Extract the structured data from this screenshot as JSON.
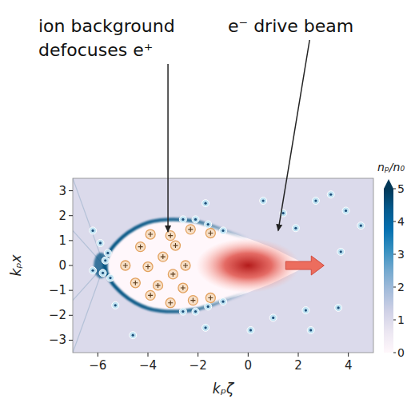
{
  "chart_data": {
    "type": "density_map",
    "annotations": [
      {
        "text": [
          "ion background",
          "defocuses e⁺"
        ],
        "xy": [
          -3.2,
          1.35
        ]
      },
      {
        "text": [
          "e⁻ drive beam"
        ],
        "xy": [
          1.2,
          1.4
        ]
      }
    ],
    "x_label": "kₚζ",
    "y_label": "kₚx",
    "xlim": [
      -7,
      5
    ],
    "ylim": [
      -3.5,
      3.5
    ],
    "xticks": [
      {
        "value": -6,
        "label": "−6"
      },
      {
        "value": -4,
        "label": "−4"
      },
      {
        "value": -2,
        "label": "−2"
      },
      0,
      2,
      4
    ],
    "yticks": [
      {
        "value": -3,
        "label": "−3"
      },
      {
        "value": -2,
        "label": "−2"
      },
      {
        "value": -1,
        "label": "−1"
      },
      0,
      1,
      2,
      3
    ],
    "colorbar": {
      "label": "nₚ/n₀",
      "range": [
        0,
        5
      ],
      "ticks": [
        0,
        1,
        2,
        3,
        4,
        5
      ]
    },
    "density": {
      "background": 1,
      "bubble": 0,
      "sheath": 4.5
    },
    "bubble_boundary": {
      "x": [
        -5.75,
        -5.5,
        -5.0,
        -4.5,
        -4.0,
        -3.5,
        -3.0,
        -2.5,
        -2.0,
        -1.5,
        -1.0,
        -0.5,
        0,
        0.5,
        1.0,
        1.5,
        2.0,
        2.3
      ],
      "y": [
        0,
        0.6,
        1.15,
        1.5,
        1.72,
        1.82,
        1.85,
        1.82,
        1.75,
        1.6,
        1.42,
        1.25,
        1.08,
        0.9,
        0.7,
        0.45,
        0.2,
        0
      ]
    },
    "beam": {
      "center": [
        0,
        0
      ],
      "sigma": [
        0.8,
        0.42
      ]
    },
    "ions": {
      "x": [
        -1.5,
        -2.3,
        -3.1,
        -3.9,
        -2.9,
        -4.3,
        -3.4,
        -4.9,
        -2.5,
        -4.0,
        -3.0,
        -4.5,
        -2.6,
        -3.6,
        -2.2,
        -3.1,
        -3.9,
        -1.5
      ],
      "y": [
        1.3,
        1.45,
        1.2,
        1.25,
        0.8,
        0.75,
        0.35,
        0.0,
        0.0,
        -0.05,
        -0.35,
        -0.7,
        -0.9,
        -0.8,
        -1.4,
        -1.5,
        -1.2,
        -1.3
      ]
    },
    "electrons": {
      "x": [
        -2.1,
        -1.6,
        -2.6,
        -1.0,
        -2.1,
        -2.6,
        -1.6,
        -1.0,
        -5.6,
        -5.7,
        -5.8,
        -5.5,
        -5.9,
        -6.2,
        -1.7,
        0.6,
        1.4,
        2.7,
        3.3,
        3.9,
        4.5,
        3.6,
        2.5,
        1.0,
        0.1,
        -1.7,
        -4.6,
        -5.3,
        -6.2,
        1.9,
        2.3,
        3.7
      ],
      "y": [
        1.85,
        1.65,
        1.85,
        1.4,
        -1.85,
        -1.85,
        -1.65,
        -1.45,
        0.5,
        0.2,
        -0.3,
        -0.5,
        0.9,
        -0.2,
        2.5,
        2.6,
        2.1,
        2.6,
        2.85,
        2.2,
        1.6,
        -1.7,
        -2.6,
        -2.1,
        -2.6,
        -2.5,
        -2.8,
        -1.6,
        1.4,
        1.5,
        -1.8,
        0.55
      ]
    }
  }
}
